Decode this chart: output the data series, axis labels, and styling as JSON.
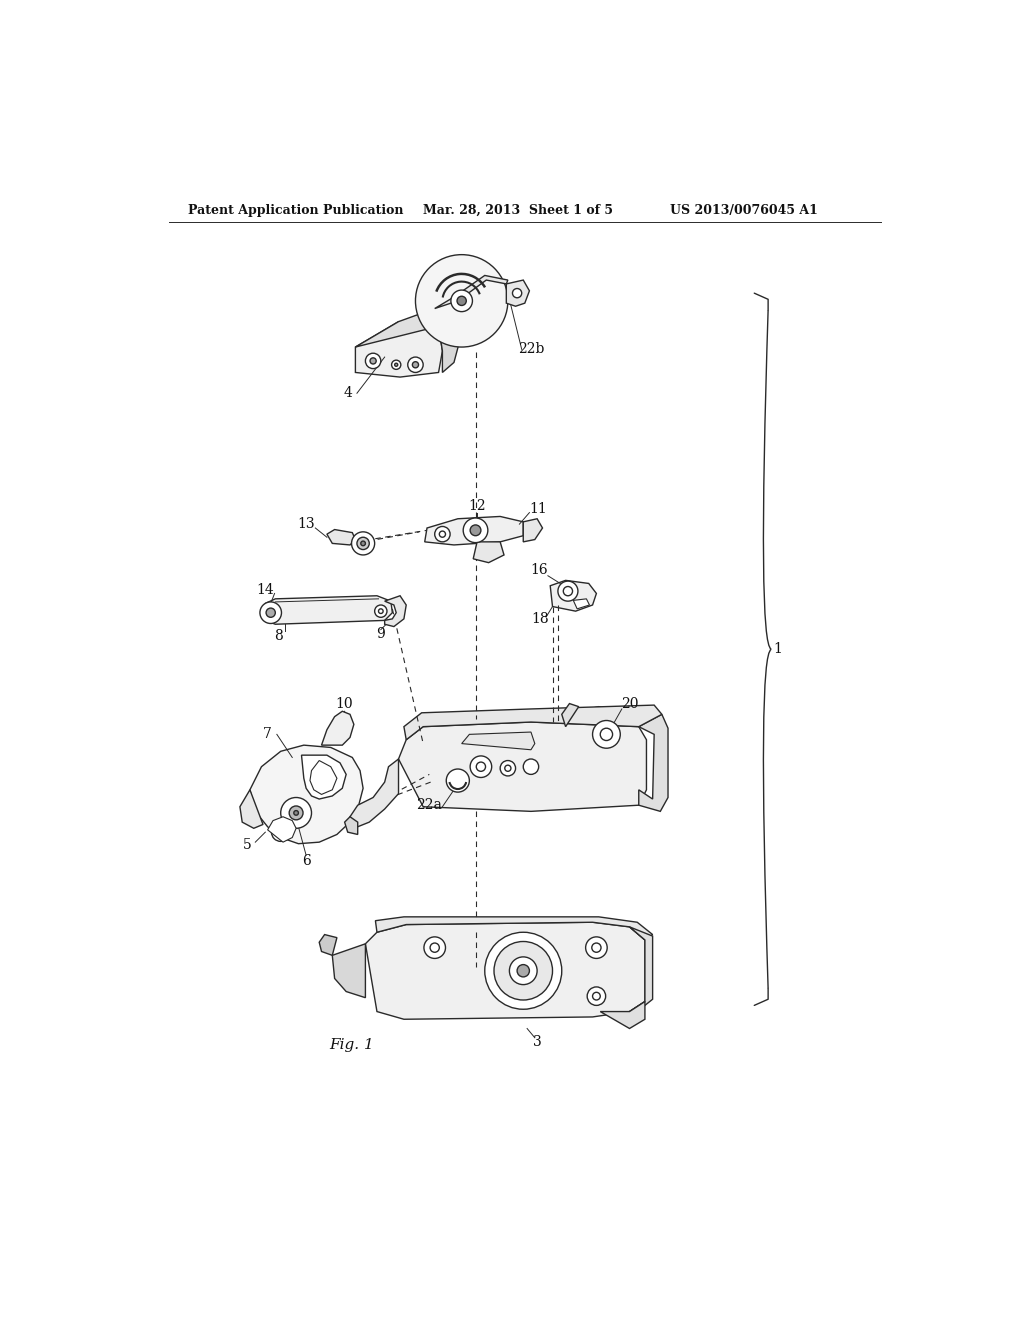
{
  "bg_color": "#ffffff",
  "line_color": "#2a2a2a",
  "header_left": "Patent Application Publication",
  "header_mid": "Mar. 28, 2013  Sheet 1 of 5",
  "header_right": "US 2013/0076045 A1",
  "fig_label": "Fig. 1"
}
